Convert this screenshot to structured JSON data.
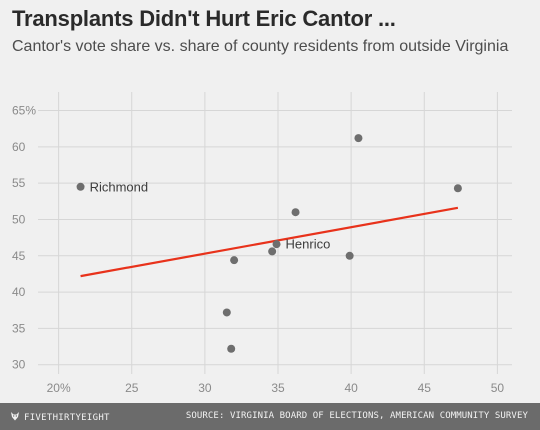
{
  "title": "Transplants Didn't Hurt Eric Cantor ...",
  "subtitle": "Cantor's vote share vs. share of county residents from outside Virginia",
  "footer": {
    "brand": "FIVETHIRTYEIGHT",
    "source": "SOURCE: VIRGINIA BOARD OF ELECTIONS, AMERICAN COMMUNITY SURVEY"
  },
  "colors": {
    "background": "#f0f0f0",
    "points": "#6e6e6e",
    "trendline": "#e8321b",
    "footer": "#6b6b6b"
  },
  "chart_data": {
    "type": "scatter",
    "x_ticks": [
      "20%",
      "25",
      "30",
      "35",
      "40",
      "45",
      "50"
    ],
    "y_ticks": [
      "65%",
      "60",
      "55",
      "50",
      "45",
      "40",
      "35",
      "30"
    ],
    "xlim": [
      19,
      51
    ],
    "ylim": [
      29,
      67
    ],
    "grid": true,
    "points": [
      {
        "x": 21.5,
        "y": 54.5,
        "label": "Richmond"
      },
      {
        "x": 40.5,
        "y": 61.2,
        "label": ""
      },
      {
        "x": 47.3,
        "y": 54.3,
        "label": ""
      },
      {
        "x": 36.2,
        "y": 51.0,
        "label": ""
      },
      {
        "x": 34.9,
        "y": 46.6,
        "label": "Henrico"
      },
      {
        "x": 34.6,
        "y": 45.6,
        "label": ""
      },
      {
        "x": 39.9,
        "y": 45.0,
        "label": ""
      },
      {
        "x": 32.0,
        "y": 44.4,
        "label": ""
      },
      {
        "x": 31.5,
        "y": 37.2,
        "label": ""
      },
      {
        "x": 31.8,
        "y": 32.2,
        "label": ""
      }
    ],
    "trendline": {
      "x": [
        21.5,
        47.3
      ],
      "y": [
        42.2,
        51.6
      ]
    }
  }
}
